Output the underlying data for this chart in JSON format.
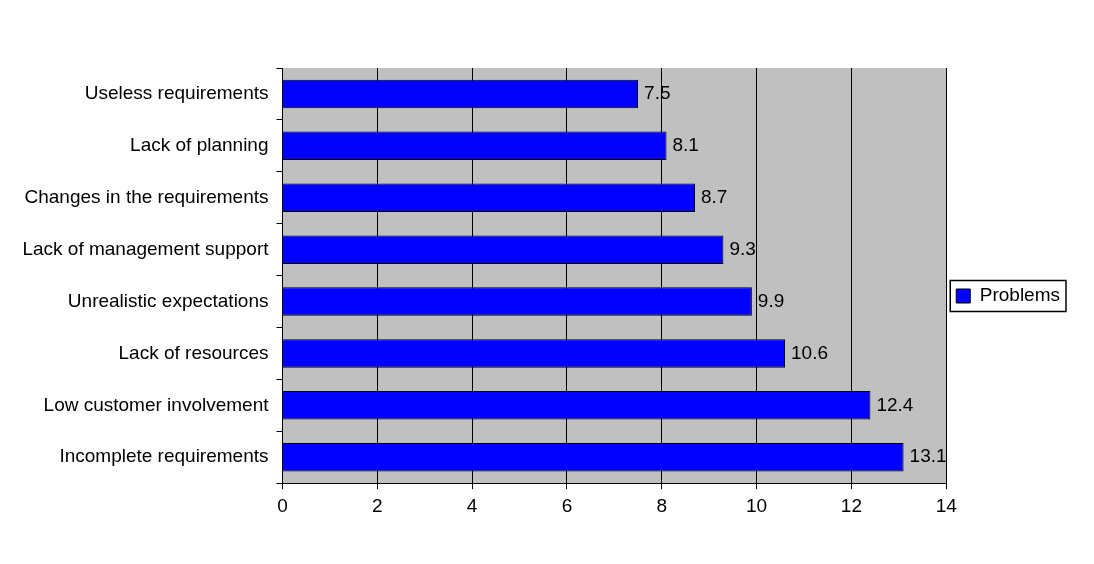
{
  "chart_data": {
    "type": "bar",
    "orientation": "horizontal",
    "categories": [
      "Useless requirements",
      "Lack of planning",
      "Changes in the requirements",
      "Lack of management support",
      "Unrealistic expectations",
      "Lack of resources",
      "Low customer involvement",
      "Incomplete requirements"
    ],
    "series": [
      {
        "name": "Problems",
        "color": "#0000ff",
        "values": [
          7.5,
          8.1,
          8.7,
          9.3,
          9.9,
          10.6,
          12.4,
          13.1
        ]
      }
    ],
    "xlim": [
      0,
      14
    ],
    "xticks": [
      0,
      2,
      4,
      6,
      8,
      10,
      12,
      14
    ],
    "grid": "x",
    "legend": "right",
    "data_labels": true
  }
}
